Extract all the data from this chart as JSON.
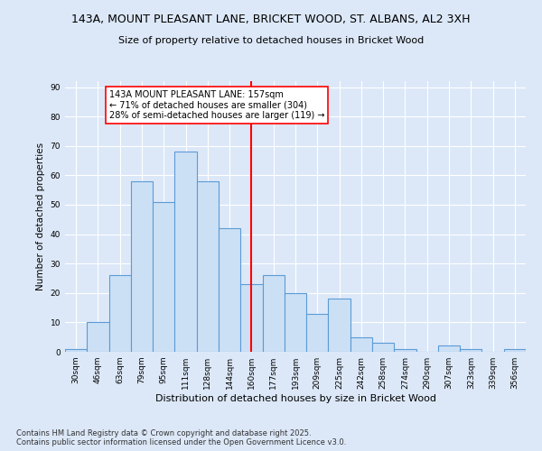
{
  "title_line1": "143A, MOUNT PLEASANT LANE, BRICKET WOOD, ST. ALBANS, AL2 3XH",
  "title_line2": "Size of property relative to detached houses in Bricket Wood",
  "xlabel": "Distribution of detached houses by size in Bricket Wood",
  "ylabel": "Number of detached properties",
  "bins": [
    "30sqm",
    "46sqm",
    "63sqm",
    "79sqm",
    "95sqm",
    "111sqm",
    "128sqm",
    "144sqm",
    "160sqm",
    "177sqm",
    "193sqm",
    "209sqm",
    "225sqm",
    "242sqm",
    "258sqm",
    "274sqm",
    "290sqm",
    "307sqm",
    "323sqm",
    "339sqm",
    "356sqm"
  ],
  "values": [
    1,
    10,
    26,
    58,
    51,
    68,
    58,
    42,
    23,
    26,
    20,
    13,
    18,
    5,
    3,
    1,
    0,
    2,
    1,
    0,
    1
  ],
  "bar_color": "#cce0f5",
  "bar_edge_color": "#5b9bd5",
  "vline_color": "red",
  "annotation_text": "143A MOUNT PLEASANT LANE: 157sqm\n← 71% of detached houses are smaller (304)\n28% of semi-detached houses are larger (119) →",
  "annotation_box_color": "white",
  "annotation_box_edge_color": "red",
  "ylim": [
    0,
    92
  ],
  "background_color": "#dce8f8",
  "footer_line1": "Contains HM Land Registry data © Crown copyright and database right 2025.",
  "footer_line2": "Contains public sector information licensed under the Open Government Licence v3.0."
}
